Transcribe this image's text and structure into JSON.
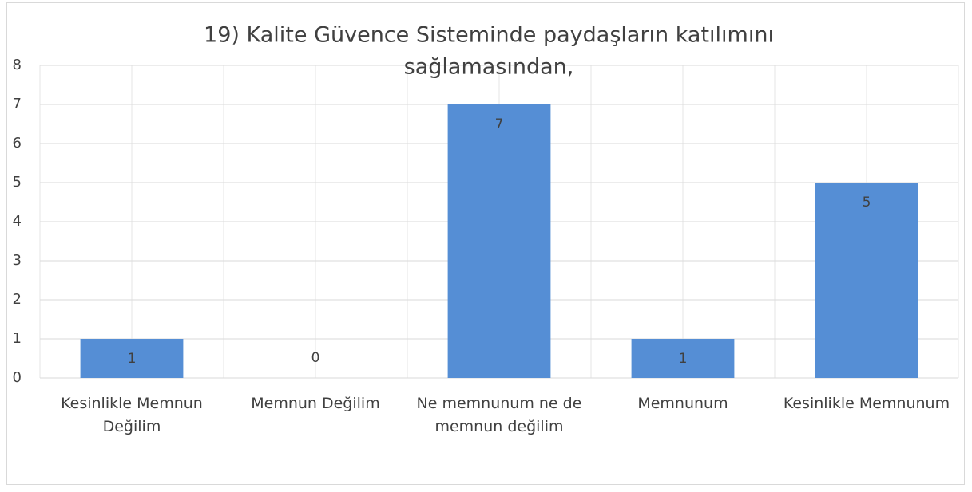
{
  "chart_data": {
    "type": "bar",
    "title": [
      "19) Kalite Güvence Sisteminde paydaşların katılımını",
      "sağlamasından,"
    ],
    "categories": [
      "Kesinlikle Memnun Değilim",
      "Memnun Değilim",
      "Ne memnunum ne de memnun değilim",
      "Memnunum",
      "Kesinlikle Memnunum"
    ],
    "values": [
      1,
      0,
      7,
      1,
      5
    ],
    "color": "#558ed5",
    "ylim": [
      0,
      8
    ],
    "yticks": [
      0,
      1,
      2,
      3,
      4,
      5,
      6,
      7,
      8
    ],
    "grid": true
  }
}
